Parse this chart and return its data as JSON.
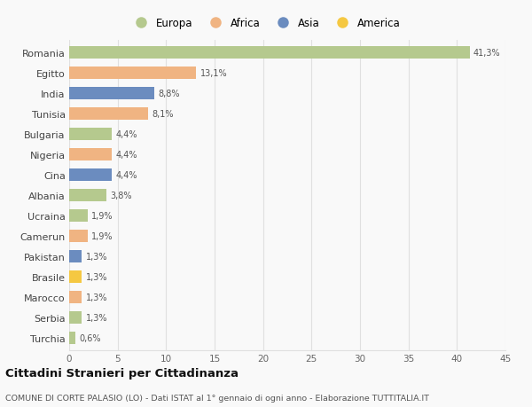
{
  "countries": [
    "Romania",
    "Egitto",
    "India",
    "Tunisia",
    "Bulgaria",
    "Nigeria",
    "Cina",
    "Albania",
    "Ucraina",
    "Camerun",
    "Pakistan",
    "Brasile",
    "Marocco",
    "Serbia",
    "Turchia"
  ],
  "values": [
    41.3,
    13.1,
    8.8,
    8.1,
    4.4,
    4.4,
    4.4,
    3.8,
    1.9,
    1.9,
    1.3,
    1.3,
    1.3,
    1.3,
    0.6
  ],
  "labels": [
    "41,3%",
    "13,1%",
    "8,8%",
    "8,1%",
    "4,4%",
    "4,4%",
    "4,4%",
    "3,8%",
    "1,9%",
    "1,9%",
    "1,3%",
    "1,3%",
    "1,3%",
    "1,3%",
    "0,6%"
  ],
  "colors": [
    "#b5c98e",
    "#f0b482",
    "#6b8cbf",
    "#f0b482",
    "#b5c98e",
    "#f0b482",
    "#6b8cbf",
    "#b5c98e",
    "#b5c98e",
    "#f0b482",
    "#6b8cbf",
    "#f5c842",
    "#f0b482",
    "#b5c98e",
    "#b5c98e"
  ],
  "legend_labels": [
    "Europa",
    "Africa",
    "Asia",
    "America"
  ],
  "legend_colors": [
    "#b5c98e",
    "#f0b482",
    "#6b8cbf",
    "#f5c842"
  ],
  "title": "Cittadini Stranieri per Cittadinanza",
  "subtitle": "COMUNE DI CORTE PALASIO (LO) - Dati ISTAT al 1° gennaio di ogni anno - Elaborazione TUTTITALIA.IT",
  "xlim": [
    0,
    45
  ],
  "xticks": [
    0,
    5,
    10,
    15,
    20,
    25,
    30,
    35,
    40,
    45
  ],
  "bg_color": "#f9f9f9",
  "grid_color": "#e0e0e0",
  "bar_height": 0.62
}
